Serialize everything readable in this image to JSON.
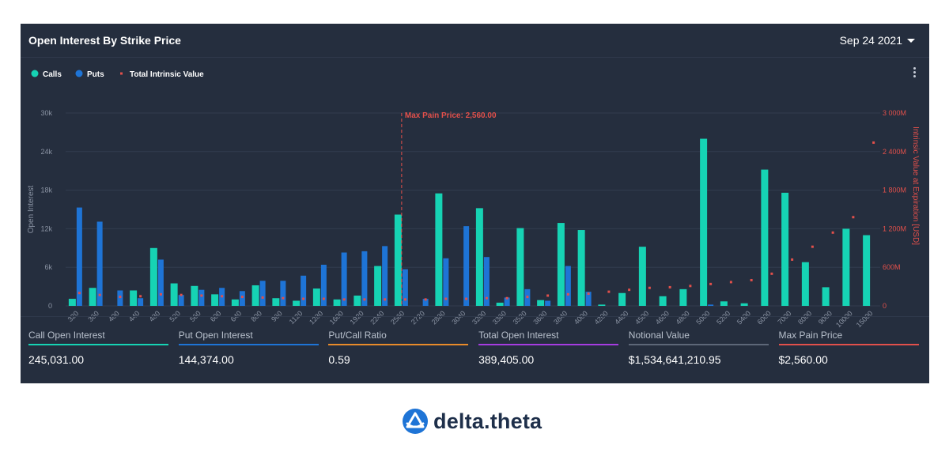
{
  "header": {
    "title": "Open Interest By Strike Price",
    "date": "Sep 24 2021"
  },
  "legend": [
    {
      "label": "Calls",
      "color": "#16d3b4"
    },
    {
      "label": "Puts",
      "color": "#1e74d6"
    },
    {
      "label": "Total Intrinsic Value",
      "color": "#e2504b"
    }
  ],
  "annotation": {
    "label": "Max Pain Price: 2,560.00",
    "strike": "2560"
  },
  "chart_data": {
    "type": "bar",
    "title": "Open Interest By Strike Price",
    "ylabel": "Open Interest",
    "y2label": "Intrinsic Value at Expiration [USD]",
    "ylim": [
      0,
      30000
    ],
    "y2lim": [
      0,
      3000000000
    ],
    "yticks": [
      "0",
      "6k",
      "12k",
      "18k",
      "24k",
      "30k"
    ],
    "y2ticks": [
      "0",
      "600M",
      "1 200M",
      "1 800M",
      "2 400M",
      "3 000M"
    ],
    "grid": true,
    "legend_position": "top-left",
    "categories": [
      "320",
      "360",
      "400",
      "440",
      "480",
      "520",
      "560",
      "600",
      "640",
      "800",
      "960",
      "1120",
      "1280",
      "1600",
      "1920",
      "2240",
      "2560",
      "2720",
      "2880",
      "3040",
      "3200",
      "3360",
      "3520",
      "3680",
      "3840",
      "4000",
      "4200",
      "4400",
      "4500",
      "4600",
      "4800",
      "5000",
      "5200",
      "5400",
      "6000",
      "7000",
      "8000",
      "9000",
      "10000",
      "15000"
    ],
    "series": [
      {
        "name": "Calls",
        "color": "#16d3b4",
        "values": [
          1100,
          2800,
          0,
          2400,
          9000,
          3500,
          3100,
          1800,
          1000,
          3200,
          1200,
          800,
          2700,
          1000,
          1600,
          6200,
          14200,
          0,
          17500,
          0,
          15200,
          500,
          12100,
          900,
          12900,
          11800,
          200,
          2000,
          9200,
          1500,
          2600,
          26000,
          700,
          400,
          21200,
          17600,
          6800,
          2900,
          12000,
          11000
        ]
      },
      {
        "name": "Puts",
        "color": "#1e74d6",
        "values": [
          15300,
          13100,
          2400,
          1200,
          7200,
          1700,
          2500,
          2800,
          2300,
          3900,
          3900,
          4700,
          6400,
          8300,
          8500,
          9300,
          5700,
          1100,
          7400,
          12400,
          7600,
          1300,
          2600,
          800,
          6200,
          2200,
          0,
          0,
          0,
          0,
          0,
          200,
          0,
          0,
          0,
          0,
          0,
          0,
          0,
          0
        ]
      },
      {
        "name": "Total Intrinsic Value",
        "color": "#e2504b",
        "values": [
          200000000,
          170000000,
          140000000,
          150000000,
          180000000,
          170000000,
          160000000,
          150000000,
          140000000,
          130000000,
          120000000,
          110000000,
          110000000,
          100000000,
          100000000,
          100000000,
          100000000,
          100000000,
          110000000,
          110000000,
          120000000,
          120000000,
          140000000,
          160000000,
          180000000,
          190000000,
          220000000,
          250000000,
          280000000,
          290000000,
          310000000,
          340000000,
          370000000,
          400000000,
          500000000,
          720000000,
          920000000,
          1140000000,
          1380000000,
          2540000000
        ]
      }
    ]
  },
  "stats": [
    {
      "label": "Call Open Interest",
      "value": "245,031.00",
      "color": "#16d3b4"
    },
    {
      "label": "Put Open Interest",
      "value": "144,374.00",
      "color": "#1e74d6"
    },
    {
      "label": "Put/Call Ratio",
      "value": "0.59",
      "color": "#e98b2a"
    },
    {
      "label": "Total Open Interest",
      "value": "389,405.00",
      "color": "#a63ce0"
    },
    {
      "label": "Notional Value",
      "value": "$1,534,641,210.95",
      "color": "#5d6778"
    },
    {
      "label": "Max Pain Price",
      "value": "$2,560.00",
      "color": "#e2504b"
    }
  ],
  "brand": {
    "name": "delta.theta",
    "logo_icon": "deltatheta-logo-icon",
    "logo_color": "#1e74d6"
  }
}
